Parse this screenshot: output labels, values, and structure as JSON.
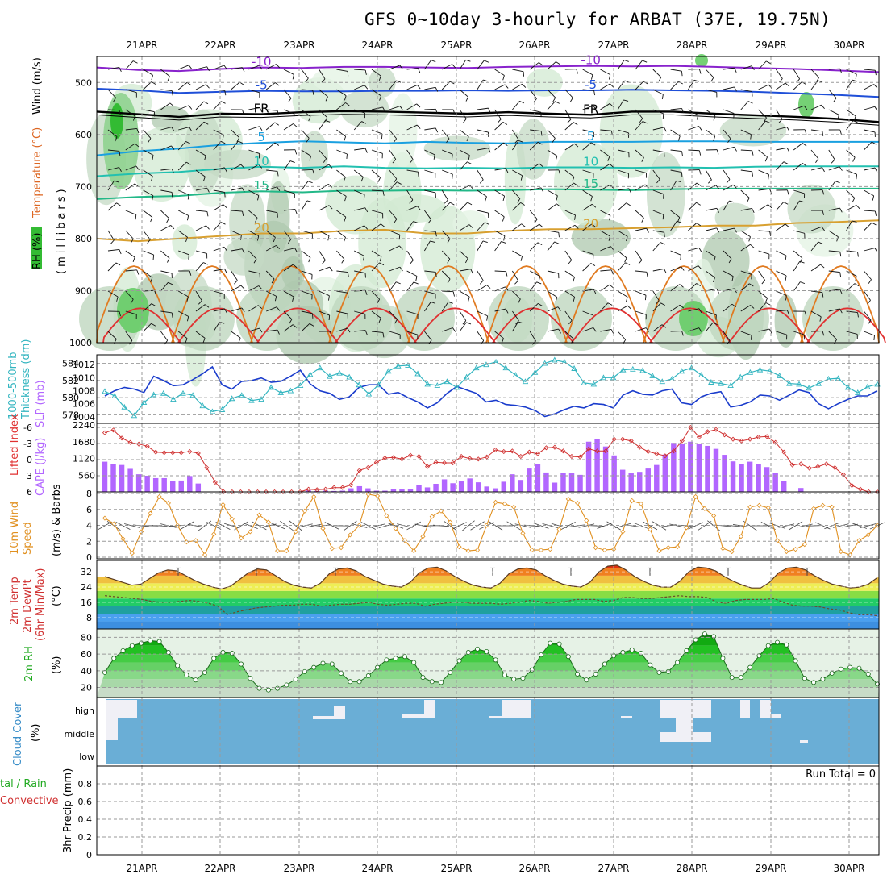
{
  "title": "GFS 0~10day 3-hourly for ARBAT (37E, 19.75N)",
  "dates": [
    "21APR",
    "22APR",
    "23APR",
    "24APR",
    "25APR",
    "26APR",
    "27APR",
    "28APR",
    "29APR",
    "30APR"
  ],
  "colors": {
    "frame": "#000000",
    "grid": "#9a9a9a",
    "thickness": "#1a3ccc",
    "slp": "#33b5c0",
    "lifted_index": "#d03030",
    "cape": "#b266ff",
    "wind_speed": "#e09020",
    "barb": "#444444",
    "rh2m": "#22cc22",
    "cloud": "#6aaed6",
    "cloud_clear": "#f0f0f6",
    "dewpoint": "#6b4a2a",
    "tmax_bar": "#444444"
  },
  "chart_data": [
    {
      "type": "heatmap",
      "panel": "upper-air",
      "ylabel": "(millibars)",
      "side_labels": [
        "RH (%)",
        "Temperature (°C)",
        "Wind (m/s)"
      ],
      "ylim": [
        1000,
        450
      ],
      "y_ticks": [
        500,
        600,
        700,
        800,
        900,
        1000
      ],
      "contours": [
        {
          "label": "-10",
          "color": "#8822cc",
          "p": [
            471,
            476,
            478,
            474,
            471,
            472,
            470,
            470,
            471,
            472,
            470,
            469,
            468,
            469,
            468,
            470,
            472,
            474,
            477,
            480
          ]
        },
        {
          "label": "-5",
          "color": "#1f4fd8",
          "p": [
            512,
            515,
            520,
            518,
            516,
            517,
            517,
            516,
            516,
            515,
            516,
            515,
            515,
            514,
            515,
            516,
            518,
            521,
            524,
            528
          ]
        },
        {
          "label": "FR",
          "color": "#000000",
          "p": [
            556,
            561,
            566,
            560,
            561,
            557,
            555,
            556,
            558,
            560,
            557,
            560,
            562,
            556,
            556,
            560,
            563,
            566,
            570,
            576
          ]
        },
        {
          "label": "5",
          "color": "#1aa0e0",
          "p": [
            640,
            632,
            627,
            620,
            616,
            613,
            615,
            617,
            614,
            616,
            617,
            614,
            614,
            614,
            613,
            613,
            614,
            614,
            614,
            614
          ]
        },
        {
          "label": "10",
          "color": "#22c0b0",
          "p": [
            680,
            675,
            672,
            666,
            662,
            664,
            661,
            664,
            665,
            664,
            665,
            663,
            663,
            664,
            663,
            664,
            662,
            661,
            661,
            661
          ]
        },
        {
          "label": "15",
          "color": "#22b888",
          "p": [
            724,
            720,
            718,
            712,
            709,
            711,
            708,
            708,
            707,
            708,
            707,
            705,
            706,
            707,
            705,
            704,
            704,
            704,
            704,
            704
          ]
        },
        {
          "label": "20",
          "color": "#d8a030",
          "p": [
            800,
            805,
            800,
            795,
            790,
            790,
            785,
            783,
            790,
            790,
            785,
            782,
            782,
            780,
            778,
            775,
            775,
            770,
            768,
            765
          ]
        }
      ],
      "series": [
        {
          "name": "Wind",
          "values": []
        },
        {
          "name": "Temperature",
          "values": []
        }
      ]
    },
    {
      "type": "line",
      "panel": "thickness-slp",
      "y_ticks_left": [
        578,
        580,
        582,
        584
      ],
      "y_ticks_right": [
        1004,
        1006,
        1008,
        1010,
        1012
      ],
      "side_labels": [
        "1000-500mb Thickness (dm)",
        "SLP (mb)"
      ],
      "ylim_left": [
        577,
        585
      ],
      "ylim_right": [
        1003,
        1013.5
      ],
      "series": [
        {
          "name": "1000-500mb Thickness",
          "values": [
            580.2,
            580.8,
            581.2,
            581.0,
            580.6,
            582.5,
            582.0,
            581.4,
            581.5,
            582.1,
            582.8,
            583.6,
            581.5,
            581.0,
            581.9,
            582.0,
            582.3,
            581.8,
            581.9,
            582.5,
            583.2,
            581.6,
            580.8,
            580.5,
            579.8,
            580.1,
            581.2,
            581.5,
            581.5,
            580.4,
            580.6,
            580.0,
            579.5,
            578.8,
            579.4,
            580.5,
            581.3,
            580.9,
            580.5,
            579.5,
            579.7,
            579.2,
            579.1,
            578.9,
            578.5,
            577.8,
            578.1,
            578.6,
            579.0,
            578.8,
            579.3,
            579.2,
            578.8,
            580.3,
            580.8,
            580.4,
            580.3,
            580.8,
            581.0,
            579.4,
            579.2,
            580.1,
            580.5,
            580.7,
            578.9,
            579.1,
            579.5,
            580.3,
            580.2,
            579.7,
            580.3,
            580.9,
            580.6,
            579.3,
            578.7,
            579.3,
            579.8,
            580.2,
            580.2,
            580.8
          ]
        },
        {
          "name": "SLP",
          "values": [
            1007.9,
            1007.2,
            1005.5,
            1004.2,
            1006.2,
            1007.4,
            1007.6,
            1006.7,
            1007.6,
            1007.3,
            1005.7,
            1004.8,
            1005.1,
            1006.8,
            1007.3,
            1006.5,
            1006.7,
            1008.5,
            1007.7,
            1008.0,
            1008.8,
            1010.5,
            1011.5,
            1010.2,
            1010.7,
            1010.1,
            1008.9,
            1007.5,
            1008.9,
            1011.0,
            1011.8,
            1011.9,
            1010.6,
            1009.0,
            1008.8,
            1009.4,
            1008.5,
            1010.1,
            1011.5,
            1012.0,
            1012.4,
            1011.5,
            1010.4,
            1009.4,
            1010.8,
            1012.2,
            1012.7,
            1012.4,
            1011.4,
            1009.2,
            1009.0,
            1010.0,
            1010.0,
            1011.2,
            1011.3,
            1011.1,
            1010.3,
            1009.4,
            1009.8,
            1011.0,
            1011.5,
            1010.4,
            1009.3,
            1009.1,
            1008.8,
            1010.1,
            1010.8,
            1011.2,
            1011.0,
            1010.3,
            1009.1,
            1009.0,
            1008.4,
            1009.1,
            1009.8,
            1009.9,
            1008.5,
            1007.7,
            1008.6,
            1009.0
          ]
        }
      ]
    },
    {
      "type": "bar",
      "panel": "lifted-cape",
      "side_labels": [
        "Lifted Index",
        "CAPE (J/kg)"
      ],
      "y_ticks_left": [
        "-6",
        "-3",
        "0",
        "3",
        "6"
      ],
      "y_ticks_right": [
        560,
        1120,
        1680,
        2240
      ],
      "series": [
        {
          "name": "Lifted Index",
          "values": [
            -5,
            -5.5,
            -4,
            -3.2,
            -2.9,
            -2.5,
            -1.4,
            -1.3,
            -1.3,
            -1.3,
            -1.5,
            -1.2,
            1.5,
            4.2,
            6.8,
            7,
            7,
            7,
            7,
            7,
            7,
            7.2,
            7.5,
            6.2,
            5.5,
            5.6,
            5.5,
            5.2,
            5.2,
            4.7,
            2,
            1.5,
            0.5,
            -0.3,
            -0.4,
            -0.1,
            -0.8,
            -0.6,
            1.3,
            0.5,
            0.6,
            0.6,
            -0.6,
            -0.2,
            -0.1,
            -0.5,
            -1.8,
            -1.5,
            -1.6,
            -0.6,
            -1.4,
            -1.1,
            -2.2,
            -2.3,
            -1.6,
            -0.6,
            -0.5,
            -2,
            -1.6,
            -1.6,
            -3.8,
            -3.8,
            -3.5,
            -2.3,
            -1.5,
            -1.1,
            -0.7,
            -1.6,
            -3.5,
            -6,
            -4.2,
            -5.2,
            -5.6,
            -4.6,
            -3.8,
            -3.5,
            -3.8,
            -4.2,
            -4.3,
            -3.2,
            -1.4,
            1,
            0.8,
            1.6,
            1.3,
            0.8,
            1.5,
            2.8,
            4.8,
            5.5,
            6.2,
            6.6
          ]
        },
        {
          "name": "CAPE",
          "values": [
            1010,
            930,
            900,
            770,
            590,
            540,
            460,
            460,
            360,
            380,
            530,
            280,
            0,
            0,
            0,
            0,
            0,
            0,
            0,
            0,
            0,
            0,
            0,
            0,
            50,
            30,
            40,
            30,
            40,
            120,
            190,
            120,
            40,
            40,
            100,
            80,
            90,
            240,
            150,
            270,
            420,
            290,
            350,
            450,
            320,
            180,
            120,
            340,
            590,
            400,
            780,
            920,
            650,
            310,
            640,
            620,
            570,
            1680,
            1780,
            1520,
            1220,
            740,
            620,
            670,
            780,
            900,
            1250,
            1640,
            1620,
            1680,
            1620,
            1540,
            1440,
            1240,
            1020,
            940,
            1010,
            940,
            830,
            640,
            360,
            0,
            130,
            0,
            0,
            0,
            0,
            0,
            0,
            0,
            0,
            0
          ]
        }
      ]
    },
    {
      "type": "line",
      "panel": "10m-wind",
      "side_labels": [
        "10m Wind Speed",
        "(m/s) & Barbs"
      ],
      "y_ticks": [
        0,
        2,
        4,
        6,
        8
      ],
      "ylim": [
        0,
        8
      ],
      "series": [
        {
          "name": "10m Wind Speed",
          "values": [
            4.9,
            4.2,
            2.3,
            0.5,
            3.2,
            5.5,
            7.6,
            6.8,
            4.0,
            1.9,
            2.1,
            0.3,
            2.9,
            6.6,
            4.8,
            2.4,
            3.2,
            5.3,
            4.4,
            0.8,
            0.8,
            3.2,
            5.8,
            7.6,
            3.6,
            1.1,
            1.2,
            2.8,
            4.0,
            7.9,
            7.7,
            5.2,
            3.6,
            2.1,
            0.8,
            2.6,
            5.1,
            5.8,
            4.4,
            1.3,
            0.8,
            0.9,
            4.0,
            6.9,
            6.7,
            6.3,
            3.0,
            0.9,
            0.9,
            1.0,
            3.5,
            7.3,
            6.8,
            4.6,
            1.2,
            0.9,
            1.0,
            3.2,
            7.1,
            6.7,
            3.5,
            0.8,
            1.2,
            1.3,
            3.7,
            7.6,
            6.1,
            5.2,
            1.1,
            0.7,
            2.6,
            6.3,
            6.5,
            6.2,
            2.1,
            0.7,
            1.0,
            1.6,
            6.1,
            6.5,
            6.3,
            0.7,
            0.3,
            2.1,
            2.8,
            4.0
          ]
        }
      ]
    },
    {
      "type": "area",
      "panel": "2m-temp",
      "side_labels": [
        "2m Temp",
        "2m DewPt",
        "(6hr Min/Max) (°C)"
      ],
      "y_ticks": [
        8,
        16,
        24,
        32
      ],
      "ylim": [
        2,
        38
      ],
      "series": [
        {
          "name": "2m Temp",
          "values": [
            29.5,
            28.0,
            26.5,
            25.0,
            25.5,
            28.5,
            31.5,
            33.0,
            32.5,
            30.0,
            27.5,
            25.5,
            24.0,
            23.0,
            24.5,
            28.0,
            31.5,
            33.5,
            33.0,
            30.0,
            27.0,
            25.0,
            24.0,
            23.5,
            26.0,
            31.0,
            33.5,
            34.0,
            32.5,
            29.5,
            27.5,
            25.5,
            24.5,
            24.0,
            26.5,
            31.5,
            34.0,
            34.5,
            32.5,
            29.5,
            27.0,
            25.0,
            24.0,
            23.5,
            26.0,
            31.0,
            33.5,
            34.0,
            33.0,
            30.0,
            27.5,
            25.5,
            24.5,
            24.0,
            26.5,
            32.0,
            35.0,
            35.5,
            33.0,
            29.5,
            27.0,
            25.0,
            24.0,
            24.0,
            27.0,
            32.0,
            34.5,
            34.0,
            32.5,
            29.5,
            27.0,
            25.0,
            23.5,
            23.5,
            26.5,
            31.5,
            34.0,
            34.5,
            33.0,
            30.0,
            27.5,
            25.5,
            24.5,
            23.5,
            24.0,
            25.5,
            29.0
          ]
        },
        {
          "name": "2m DewPt",
          "values": [
            19.5,
            19.0,
            18.5,
            18.0,
            17.5,
            16.5,
            16.0,
            16.0,
            16.5,
            17.0,
            16.5,
            15.5,
            14.0,
            9.5,
            11.0,
            12.0,
            13.0,
            13.5,
            14.0,
            14.5,
            14.5,
            15.0,
            15.0,
            14.0,
            14.5,
            15.0,
            15.0,
            15.5,
            16.0,
            15.0,
            14.5,
            15.0,
            15.5,
            15.5,
            14.0,
            15.0,
            15.5,
            16.0,
            16.0,
            15.5,
            15.5,
            15.5,
            15.0,
            15.5,
            16.0,
            17.0,
            16.5,
            15.5,
            16.0,
            16.5,
            17.5,
            17.5,
            17.5,
            16.5,
            17.0,
            18.5,
            18.5,
            18.0,
            18.0,
            18.5,
            19.0,
            19.5,
            19.0,
            19.0,
            18.5,
            16.0,
            15.5,
            17.0,
            17.5,
            17.5,
            17.5,
            18.0,
            16.0,
            14.5,
            14.0,
            14.0,
            13.5,
            12.5,
            12.0,
            10.5,
            9.5,
            9.5,
            9.0
          ]
        }
      ]
    },
    {
      "type": "area",
      "panel": "2m-rh",
      "side_labels": [
        "2m RH",
        "(%)"
      ],
      "y_ticks": [
        20,
        40,
        60,
        80
      ],
      "ylim": [
        8,
        90
      ],
      "series": [
        {
          "name": "2m RH",
          "values": [
            38,
            55,
            64,
            70,
            73,
            76,
            75,
            62,
            46,
            35,
            29,
            38,
            55,
            62,
            61,
            48,
            31,
            19,
            17,
            19,
            23,
            30,
            39,
            44,
            49,
            48,
            37,
            27,
            27,
            34,
            44,
            53,
            55,
            57,
            50,
            32,
            27,
            26,
            38,
            52,
            62,
            66,
            63,
            53,
            35,
            30,
            31,
            41,
            59,
            73,
            72,
            57,
            36,
            29,
            36,
            48,
            58,
            62,
            65,
            61,
            47,
            38,
            39,
            50,
            64,
            77,
            84,
            81,
            55,
            32,
            32,
            44,
            58,
            70,
            74,
            71,
            52,
            31,
            26,
            30,
            37,
            42,
            44,
            43,
            36,
            24
          ]
        }
      ]
    },
    {
      "type": "heatmap",
      "panel": "cloud-cover",
      "side_labels": [
        "Cloud Cover",
        "(%)"
      ],
      "levels": [
        "high",
        "middle",
        "low"
      ]
    },
    {
      "type": "line",
      "panel": "precip",
      "side_labels": [
        "Total / Rain",
        "Convective",
        "3hr Precip (mm)"
      ],
      "y_ticks": [
        0,
        0.2,
        0.4,
        0.6,
        0.8
      ],
      "ylim": [
        0,
        1
      ],
      "annotation": "Run Total = 0",
      "series": [
        {
          "name": "3hr Precip",
          "values": []
        }
      ]
    }
  ]
}
